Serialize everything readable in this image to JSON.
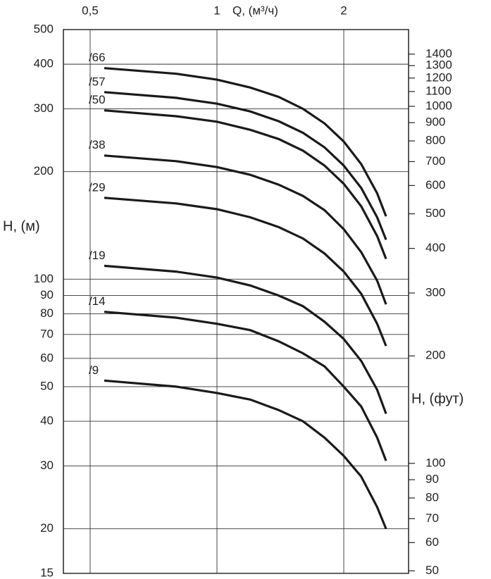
{
  "chart_data": {
    "type": "line",
    "xlabel": "Q, (м³/ч)",
    "ylabel": "H, (м)",
    "y2label": "H, (фут)",
    "xscale": "log",
    "yscale": "log",
    "grid": true,
    "x": [
      0.54,
      0.8,
      1.0,
      1.2,
      1.4,
      1.6,
      1.8,
      2.0,
      2.2,
      2.4,
      2.52
    ],
    "xlim": [
      0.432,
      2.85
    ],
    "xticks": [
      {
        "value": 0.5,
        "label": "0,5"
      },
      1,
      2
    ],
    "ylim": [
      15,
      500
    ],
    "yticks": [
      15,
      20,
      30,
      40,
      50,
      60,
      70,
      80,
      90,
      100,
      200,
      300,
      400,
      500
    ],
    "y2lim": [
      49.2,
      1640
    ],
    "y2ticks": [
      50,
      60,
      70,
      80,
      90,
      100,
      200,
      300,
      400,
      500,
      600,
      700,
      800,
      900,
      1000,
      1100,
      1200,
      1300,
      1400
    ],
    "series": [
      {
        "name": "/66",
        "color": "#1a1a1a",
        "values": [
          390,
          376,
          362,
          344,
          324,
          300,
          273,
          243,
          210,
          174,
          150
        ]
      },
      {
        "name": "/57",
        "color": "#1a1a1a",
        "values": [
          334,
          322,
          310,
          295,
          277,
          257,
          234,
          208,
          180,
          149,
          129
        ]
      },
      {
        "name": "/50",
        "color": "#1a1a1a",
        "values": [
          297,
          286,
          276,
          262,
          247,
          229,
          208,
          185,
          160,
          132,
          114
        ]
      },
      {
        "name": "/38",
        "color": "#1a1a1a",
        "values": [
          222,
          214,
          206,
          196,
          184,
          171,
          156,
          138,
          119,
          99,
          85
        ]
      },
      {
        "name": "/29",
        "color": "#1a1a1a",
        "values": [
          169,
          163,
          157,
          149,
          140,
          130,
          118,
          105,
          91,
          75,
          65
        ]
      },
      {
        "name": "/19",
        "color": "#1a1a1a",
        "values": [
          109,
          105,
          101,
          96,
          90,
          84,
          76,
          68,
          59,
          49,
          42
        ]
      },
      {
        "name": "/14",
        "color": "#1a1a1a",
        "values": [
          81,
          78,
          75,
          72,
          67,
          62,
          57,
          50,
          44,
          36,
          31
        ]
      },
      {
        "name": "/9",
        "color": "#1a1a1a",
        "values": [
          52,
          50,
          48,
          46,
          43,
          40,
          36,
          32,
          28,
          23,
          20
        ]
      }
    ]
  }
}
